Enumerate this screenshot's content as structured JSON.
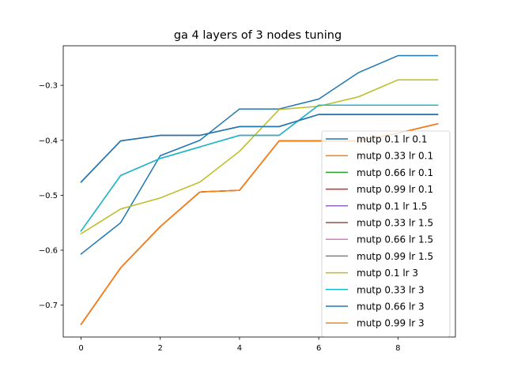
{
  "chart_data": {
    "type": "line",
    "title": "ga 4 layers of 3 nodes tuning",
    "xlabel": "",
    "ylabel": "",
    "xlim": [
      -0.45,
      9.45
    ],
    "ylim": [
      -0.758,
      -0.228
    ],
    "xticks": [
      0,
      2,
      4,
      6,
      8
    ],
    "xtick_labels": [
      "0",
      "2",
      "4",
      "6",
      "8"
    ],
    "yticks": [
      -0.7,
      -0.6,
      -0.5,
      -0.4,
      -0.3
    ],
    "ytick_labels": [
      "−0.7",
      "−0.6",
      "−0.5",
      "−0.4",
      "−0.3"
    ],
    "grid": false,
    "legend_position": "lower-right",
    "x": [
      0,
      1,
      2,
      3,
      4,
      5,
      6,
      7,
      8,
      9
    ],
    "series": [
      {
        "name": "mutp 0.1 lr 0.1",
        "color": "#1f77b4",
        "values": [
          -0.607,
          -0.55,
          -0.428,
          -0.4,
          -0.343,
          -0.343,
          -0.325,
          -0.277,
          -0.246,
          -0.246
        ]
      },
      {
        "name": "mutp 0.33 lr 0.1",
        "color": "#ff7f0e",
        "values": [
          -0.735,
          -0.632,
          -0.557,
          -0.494,
          -0.491,
          -0.401,
          -0.401,
          -0.401,
          -0.387,
          -0.37
        ]
      },
      {
        "name": "mutp 0.66 lr 0.1",
        "color": "#2ca02c",
        "values": [
          -0.476,
          -0.401,
          -0.391,
          -0.391,
          -0.375,
          -0.375,
          -0.353,
          -0.353,
          -0.353,
          -0.353
        ]
      },
      {
        "name": "mutp 0.99 lr 0.1",
        "color": "#d62728",
        "values": [
          -0.735,
          -0.632,
          -0.557,
          -0.494,
          -0.491,
          -0.401,
          -0.401,
          -0.401,
          -0.387,
          -0.37
        ]
      },
      {
        "name": "mutp 0.1 lr 1.5",
        "color": "#9467bd",
        "values": [
          -0.476,
          -0.401,
          -0.391,
          -0.391,
          -0.375,
          -0.375,
          -0.353,
          -0.353,
          -0.353,
          -0.353
        ]
      },
      {
        "name": "mutp 0.33 lr 1.5",
        "color": "#8c564b",
        "values": [
          -0.735,
          -0.632,
          -0.557,
          -0.494,
          -0.491,
          -0.401,
          -0.401,
          -0.401,
          -0.387,
          -0.37
        ]
      },
      {
        "name": "mutp 0.66 lr 1.5",
        "color": "#e377c2",
        "values": [
          -0.565,
          -0.464,
          -0.433,
          -0.412,
          -0.391,
          -0.391,
          -0.336,
          -0.336,
          -0.336,
          -0.336
        ]
      },
      {
        "name": "mutp 0.99 lr 1.5",
        "color": "#7f7f7f",
        "values": [
          -0.565,
          -0.464,
          -0.433,
          -0.412,
          -0.391,
          -0.391,
          -0.336,
          -0.336,
          -0.336,
          -0.336
        ]
      },
      {
        "name": "mutp 0.1 lr 3",
        "color": "#bcbd22",
        "values": [
          -0.57,
          -0.525,
          -0.505,
          -0.476,
          -0.42,
          -0.344,
          -0.338,
          -0.321,
          -0.29,
          -0.29
        ]
      },
      {
        "name": "mutp 0.33 lr 3",
        "color": "#17becf",
        "values": [
          -0.565,
          -0.464,
          -0.433,
          -0.412,
          -0.391,
          -0.391,
          -0.336,
          -0.336,
          -0.336,
          -0.336
        ]
      },
      {
        "name": "mutp 0.66 lr 3",
        "color": "#1f77b4",
        "values": [
          -0.476,
          -0.401,
          -0.391,
          -0.391,
          -0.375,
          -0.375,
          -0.353,
          -0.353,
          -0.353,
          -0.353
        ]
      },
      {
        "name": "mutp 0.99 lr 3",
        "color": "#ff7f0e",
        "values": [
          -0.735,
          -0.632,
          -0.557,
          -0.494,
          -0.491,
          -0.401,
          -0.401,
          -0.401,
          -0.387,
          -0.37
        ]
      }
    ]
  }
}
